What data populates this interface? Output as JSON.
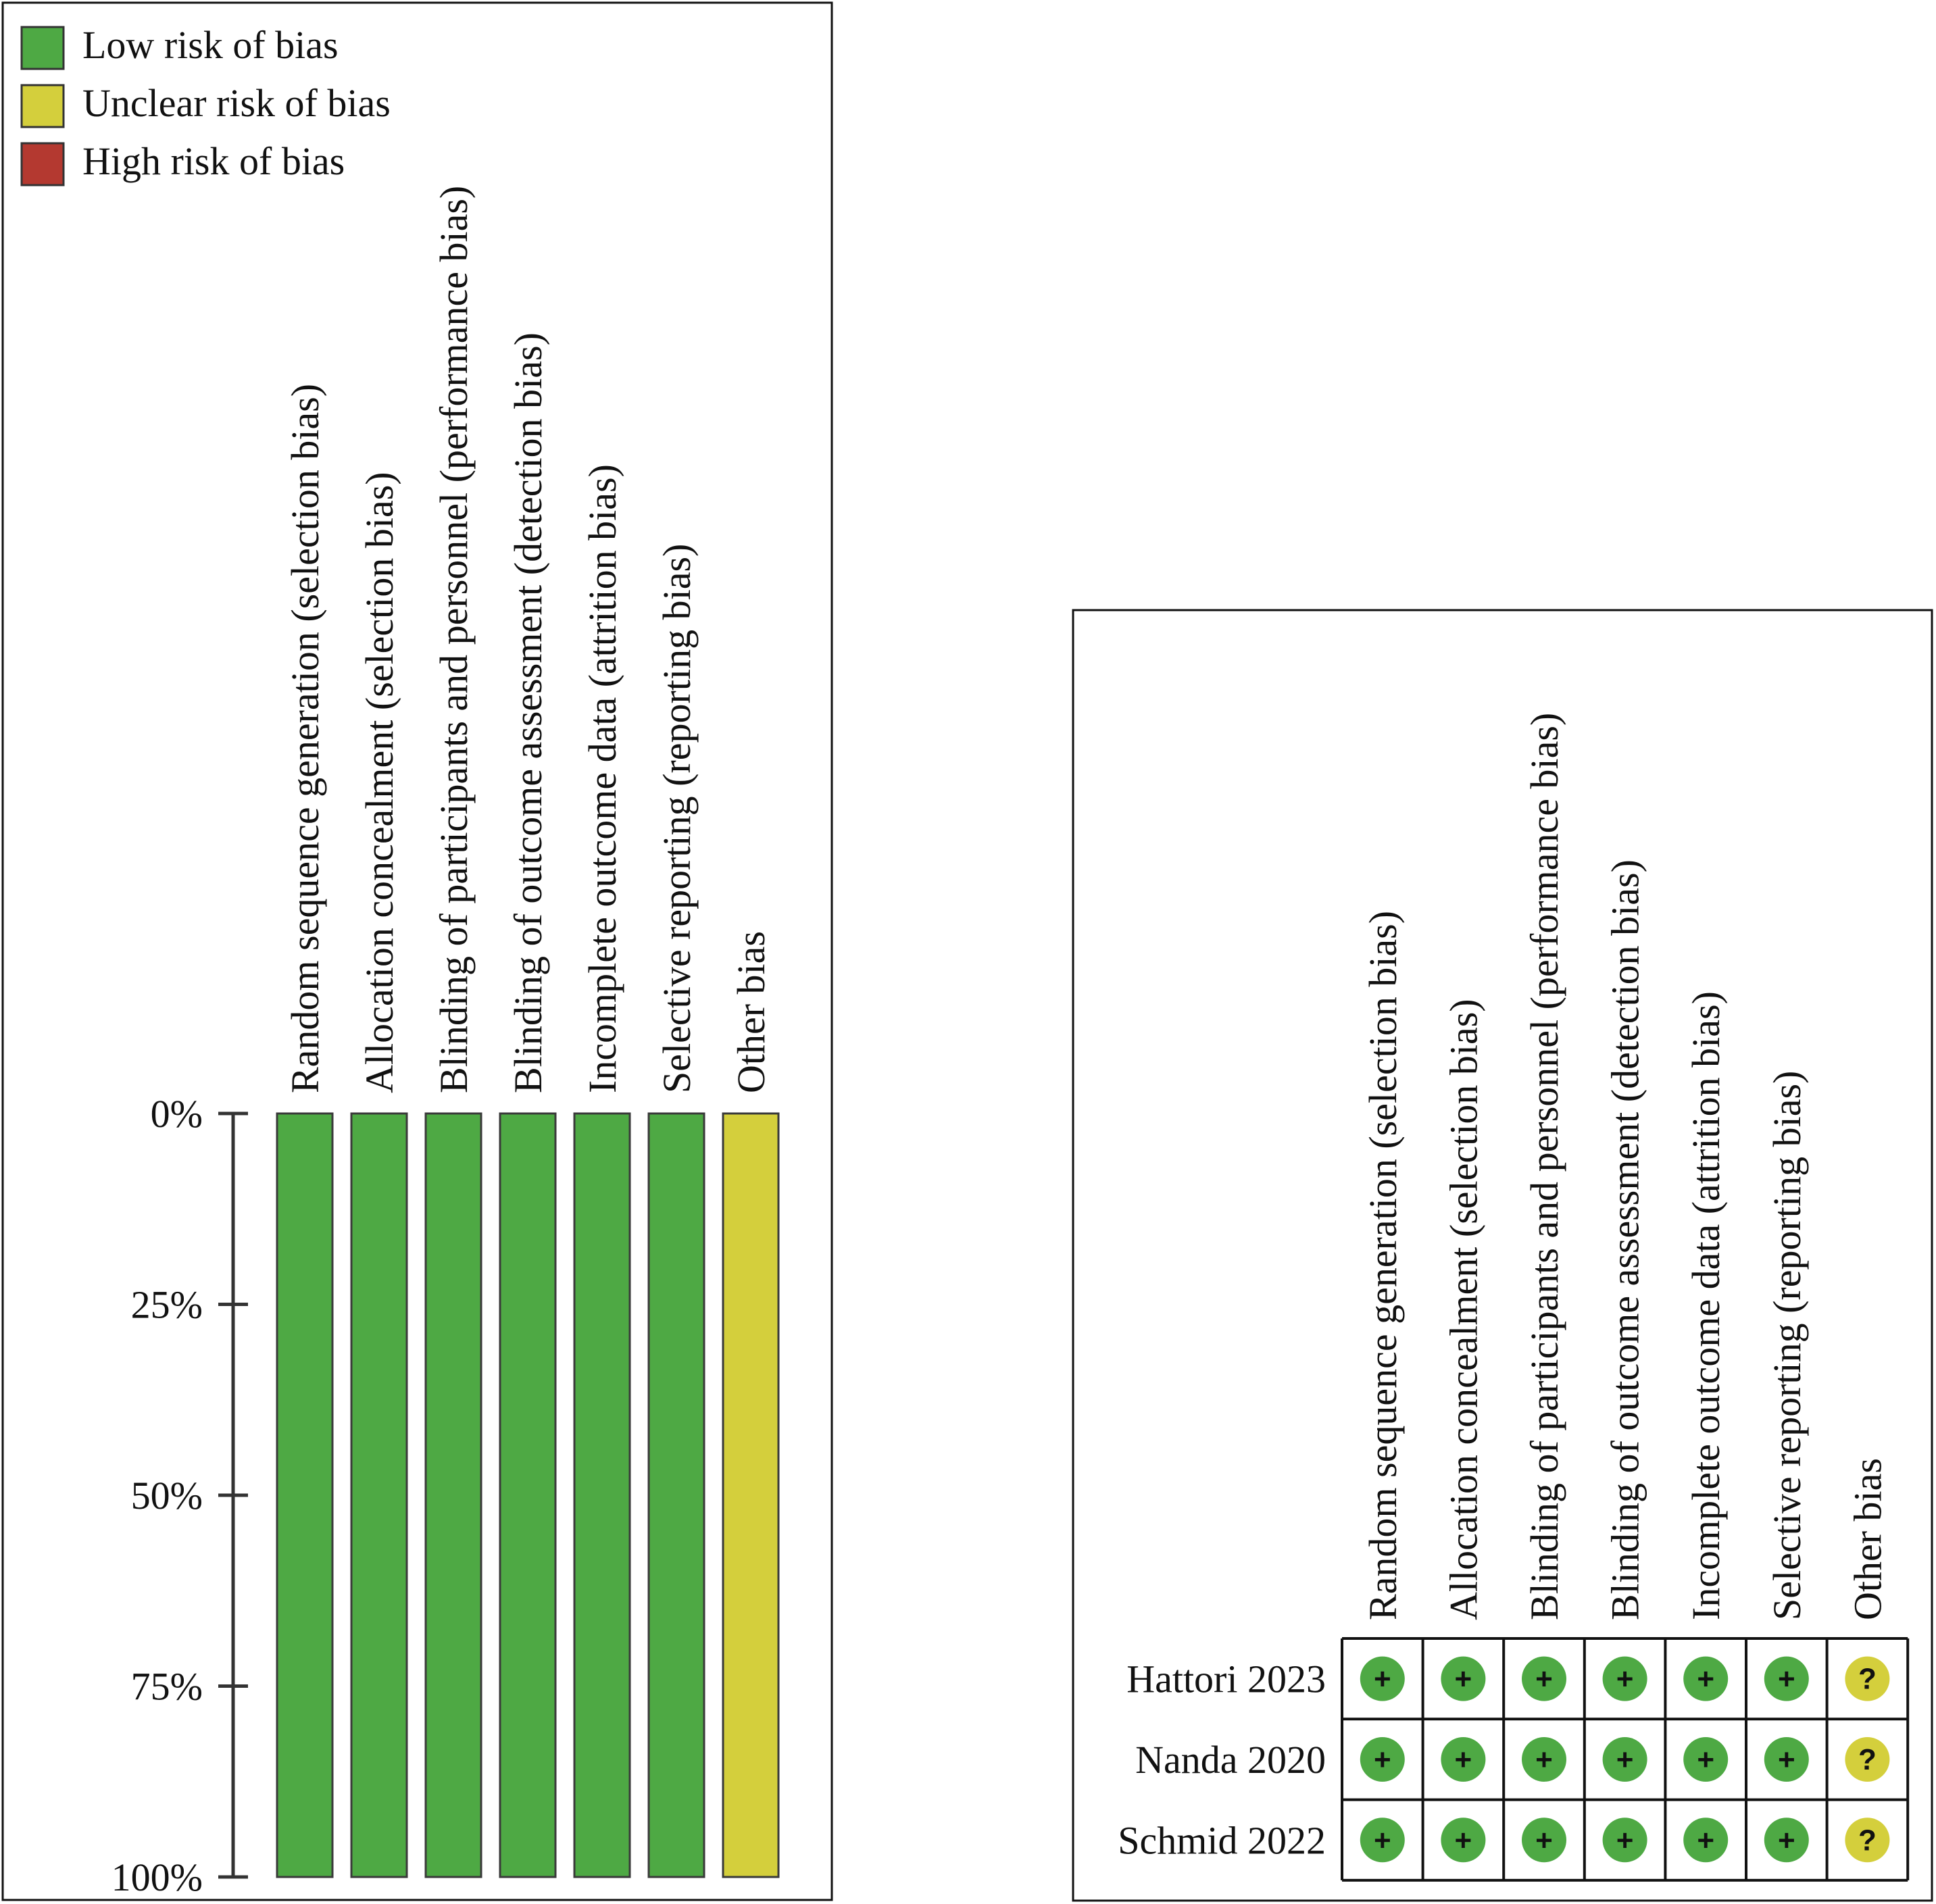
{
  "legend": [
    {
      "label": "Low risk of bias",
      "color": "#4ea944"
    },
    {
      "label": "Unclear risk of bias",
      "color": "#d4cf3c"
    },
    {
      "label": "High risk of bias",
      "color": "#b43930"
    }
  ],
  "chart_data": [
    {
      "type": "bar",
      "orientation": "vertical-stacked-100",
      "categories": [
        "Random sequence generation (selection bias)",
        "Allocation concealment (selection bias)",
        "Blinding of participants and personnel (performance bias)",
        "Blinding of outcome assessment (detection bias)",
        "Incomplete outcome data (attrition bias)",
        "Selective reporting (reporting bias)",
        "Other bias"
      ],
      "yticks": [
        "0%",
        "25%",
        "50%",
        "75%",
        "100%"
      ],
      "ylim": [
        0,
        100
      ],
      "series": [
        {
          "name": "Low risk of bias",
          "values": [
            100,
            100,
            100,
            100,
            100,
            100,
            0
          ]
        },
        {
          "name": "Unclear risk of bias",
          "values": [
            0,
            0,
            0,
            0,
            0,
            0,
            100
          ]
        },
        {
          "name": "High risk of bias",
          "values": [
            0,
            0,
            0,
            0,
            0,
            0,
            0
          ]
        }
      ]
    },
    {
      "type": "table",
      "columns": [
        "Random sequence generation (selection bias)",
        "Allocation concealment (selection bias)",
        "Blinding of participants and personnel (performance bias)",
        "Blinding of outcome assessment (detection bias)",
        "Incomplete outcome data (attrition bias)",
        "Selective reporting (reporting bias)",
        "Other bias"
      ],
      "rows": [
        {
          "study": "Hattori 2023",
          "cells": [
            "+",
            "+",
            "+",
            "+",
            "+",
            "+",
            "?"
          ]
        },
        {
          "study": "Nanda 2020",
          "cells": [
            "+",
            "+",
            "+",
            "+",
            "+",
            "+",
            "?"
          ]
        },
        {
          "study": "Schmid 2022",
          "cells": [
            "+",
            "+",
            "+",
            "+",
            "+",
            "+",
            "?"
          ]
        }
      ],
      "symbol_colors": {
        "+": "#4ea944",
        "?": "#d4cf3c",
        "-": "#b43930"
      }
    }
  ]
}
